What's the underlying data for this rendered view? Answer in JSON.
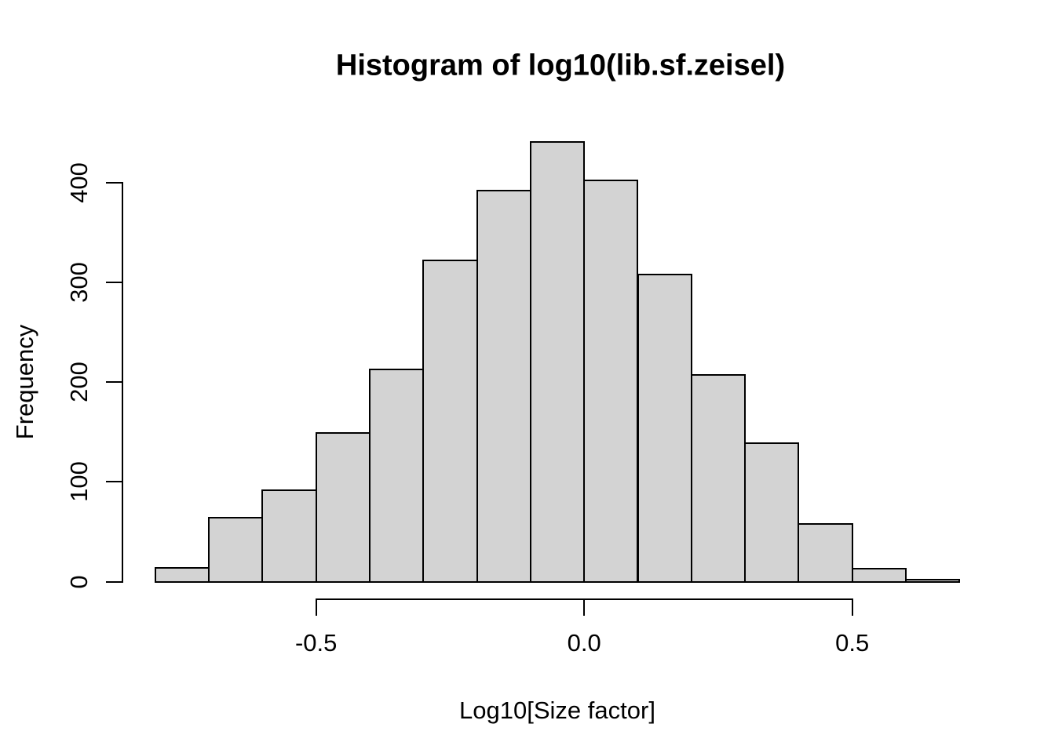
{
  "figure": {
    "background": "#ffffff",
    "text_color": "#000000"
  },
  "chart_data": {
    "type": "bar",
    "subtype": "histogram",
    "title": "Histogram of log10(lib.sf.zeisel)",
    "xlabel": "Log10[Size factor]",
    "ylabel": "Frequency",
    "bin_start": -0.8,
    "bin_width": 0.1,
    "bin_edges": [
      -0.8,
      -0.7,
      -0.6,
      -0.5,
      -0.4,
      -0.3,
      -0.2,
      -0.1,
      0.0,
      0.1,
      0.2,
      0.3,
      0.4,
      0.5,
      0.6,
      0.7
    ],
    "values": [
      14,
      64,
      92,
      149,
      213,
      322,
      392,
      441,
      402,
      308,
      207,
      139,
      58,
      13,
      2
    ],
    "x_ticks": [
      -0.5,
      0.0,
      0.5
    ],
    "x_tick_labels": [
      "-0.5",
      "0.0",
      "0.5"
    ],
    "y_ticks": [
      0,
      100,
      200,
      300,
      400
    ],
    "y_tick_labels": [
      "0",
      "100",
      "200",
      "300",
      "400"
    ],
    "xlim": [
      -0.8,
      0.7
    ],
    "ylim": [
      0,
      441
    ],
    "grid": false,
    "legend": null,
    "bar_fill": "#d3d3d3",
    "bar_border": "#000000",
    "axis_color": "#000000"
  }
}
